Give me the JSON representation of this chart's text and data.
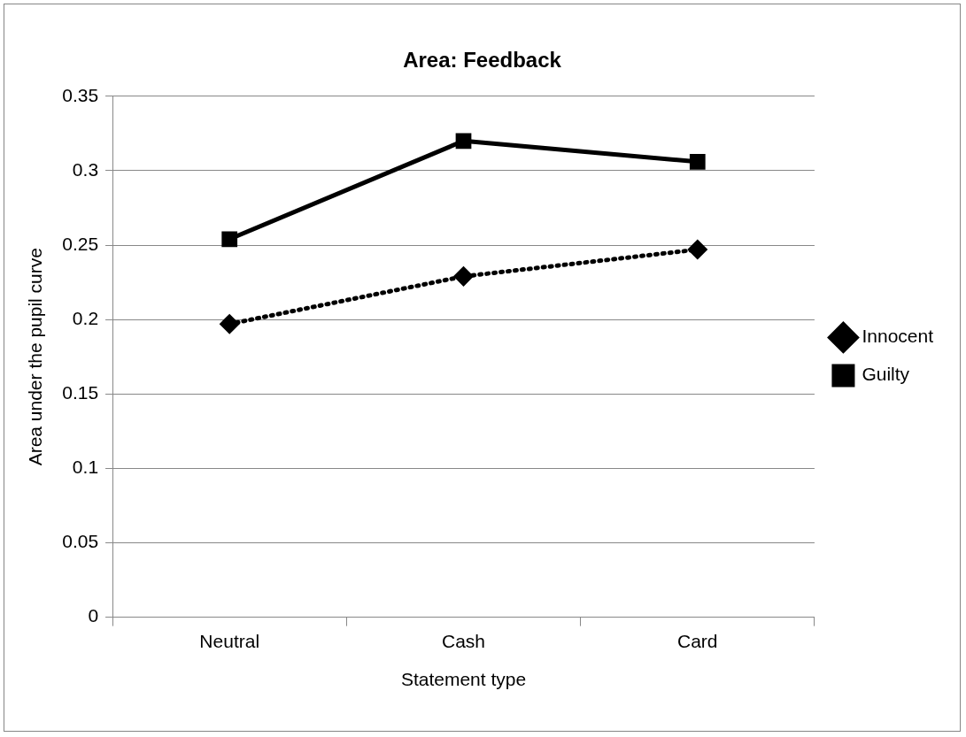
{
  "chart_data": {
    "type": "line",
    "title": "Area: Feedback",
    "xlabel": "Statement type",
    "ylabel": "Area under the pupil curve",
    "categories": [
      "Neutral",
      "Cash",
      "Card"
    ],
    "series": [
      {
        "name": "Innocent",
        "color": "#000000",
        "values": [
          0.197,
          0.229,
          0.247
        ],
        "marker": "diamond",
        "line_style": "dotted"
      },
      {
        "name": "Guilty",
        "color": "#000000",
        "values": [
          0.254,
          0.32,
          0.306
        ],
        "marker": "square",
        "line_style": "solid"
      }
    ],
    "ylim": [
      0,
      0.35
    ],
    "yticks": [
      0,
      0.05,
      0.1,
      0.15,
      0.2,
      0.25,
      0.3,
      0.35
    ],
    "grid": "y",
    "legend": "right"
  }
}
